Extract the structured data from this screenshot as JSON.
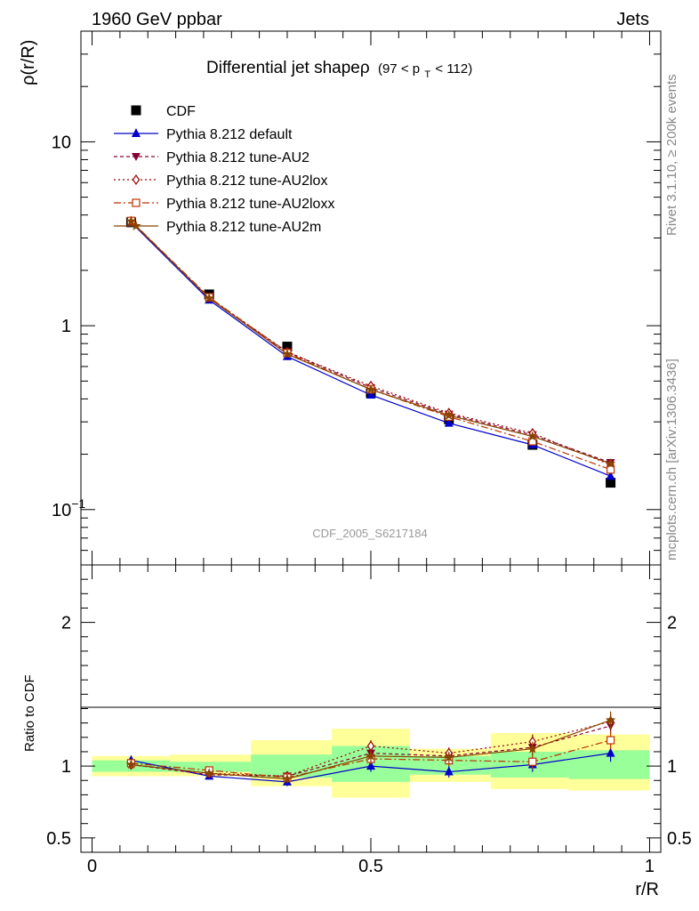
{
  "header": {
    "left": "1960 GeV ppbar",
    "right": "Jets"
  },
  "side_labels": {
    "rivet": "Rivet 3.1.10, ≥ 200k events",
    "source": "mcplots.cern.ch [arXiv:1306.3436]"
  },
  "watermark": "CDF_2005_S6217184",
  "colors": {
    "cdf": "#000000",
    "default": "#0000cc",
    "au2": "#880033",
    "au2lox": "#990000",
    "au2loxx": "#bb3300",
    "au2m": "#884400",
    "band_yellow": "#ffff99",
    "band_green": "#99ff99"
  },
  "chart_data": [
    {
      "id": "main",
      "type": "line",
      "title_main": "Differential jet shapeρ",
      "title_sub": "(97 < p",
      "title_sub_index": "T",
      "title_sub_tail": " < 112)",
      "ylabel": "ρ(r/R)",
      "yscale": "log",
      "ylim": [
        0.05,
        40
      ],
      "xlim": [
        -0.02,
        1.02
      ],
      "y_tick_labels": [
        {
          "value": 10,
          "label": "10"
        },
        {
          "value": 1,
          "label": "1"
        },
        {
          "value": 0.1,
          "label": "10",
          "exponent": "−1"
        }
      ],
      "x": [
        0.07,
        0.21,
        0.35,
        0.5,
        0.64,
        0.79,
        0.93
      ],
      "series": [
        {
          "key": "cdf",
          "name": "CDF",
          "marker": "square",
          "values": [
            3.65,
            1.48,
            0.77,
            0.43,
            0.31,
            0.225,
            0.14
          ]
        },
        {
          "key": "default",
          "name": "Pythia 8.212 default",
          "marker": "triangle-up",
          "values": [
            3.65,
            1.38,
            0.68,
            0.42,
            0.295,
            0.225,
            0.152
          ]
        },
        {
          "key": "au2",
          "name": "Pythia 8.212 tune-AU2",
          "marker": "triangle-down",
          "values": [
            3.68,
            1.41,
            0.72,
            0.46,
            0.33,
            0.255,
            0.18
          ]
        },
        {
          "key": "au2lox",
          "name": "Pythia 8.212 tune-AU2lox",
          "marker": "diamond",
          "values": [
            3.7,
            1.42,
            0.72,
            0.47,
            0.335,
            0.26,
            0.175
          ]
        },
        {
          "key": "au2loxx",
          "name": "Pythia 8.212 tune-AU2loxx",
          "marker": "square-open",
          "values": [
            3.72,
            1.43,
            0.71,
            0.45,
            0.32,
            0.235,
            0.165
          ]
        },
        {
          "key": "au2m",
          "name": "Pythia 8.212 tune-AU2m",
          "marker": "star",
          "values": [
            3.7,
            1.41,
            0.7,
            0.45,
            0.325,
            0.25,
            0.178
          ]
        }
      ]
    },
    {
      "id": "ratio",
      "type": "line",
      "ylabel": "Ratio to CDF",
      "xlabel": "r/R",
      "ylim": [
        0.4,
        2.4
      ],
      "xlim": [
        -0.02,
        1.02
      ],
      "y_ticks": [
        {
          "value": 2,
          "label": "2"
        },
        {
          "value": 1,
          "label": "1"
        },
        {
          "value": 0.5,
          "label": "0.5"
        }
      ],
      "x_ticks": [
        {
          "value": 0,
          "label": "0"
        },
        {
          "value": 0.5,
          "label": "0.5"
        },
        {
          "value": 1,
          "label": "1"
        }
      ],
      "bins": [
        {
          "lo": 0.0,
          "hi": 0.14,
          "yellow": [
            0.93,
            1.07
          ],
          "green": [
            0.96,
            1.04
          ]
        },
        {
          "lo": 0.14,
          "hi": 0.285,
          "yellow": [
            0.93,
            1.08
          ],
          "green": [
            0.96,
            1.03
          ]
        },
        {
          "lo": 0.285,
          "hi": 0.43,
          "yellow": [
            0.86,
            1.18
          ],
          "green": [
            0.92,
            1.08
          ]
        },
        {
          "lo": 0.43,
          "hi": 0.57,
          "yellow": [
            0.78,
            1.26
          ],
          "green": [
            0.89,
            1.14
          ]
        },
        {
          "lo": 0.57,
          "hi": 0.715,
          "yellow": [
            0.89,
            1.12
          ],
          "green": [
            0.94,
            1.07
          ]
        },
        {
          "lo": 0.715,
          "hi": 0.855,
          "yellow": [
            0.84,
            1.23
          ],
          "green": [
            0.92,
            1.1
          ]
        },
        {
          "lo": 0.855,
          "hi": 1.0,
          "yellow": [
            0.83,
            1.22
          ],
          "green": [
            0.91,
            1.11
          ]
        }
      ],
      "x": [
        0.07,
        0.21,
        0.35,
        0.5,
        0.64,
        0.79,
        0.93
      ],
      "series": [
        {
          "key": "default",
          "values": [
            1.04,
            0.93,
            0.89,
            1.0,
            0.96,
            1.01,
            1.09
          ],
          "errors": [
            0.02,
            0.02,
            0.03,
            0.04,
            0.04,
            0.05,
            0.06
          ]
        },
        {
          "key": "au2",
          "values": [
            1.01,
            0.94,
            0.93,
            1.09,
            1.07,
            1.13,
            1.28
          ],
          "errors": [
            0.02,
            0.02,
            0.03,
            0.04,
            0.04,
            0.05,
            0.06
          ]
        },
        {
          "key": "au2lox",
          "values": [
            1.01,
            0.95,
            0.93,
            1.14,
            1.09,
            1.17,
            1.31
          ],
          "errors": [
            0.02,
            0.02,
            0.03,
            0.04,
            0.04,
            0.05,
            0.06
          ]
        },
        {
          "key": "au2loxx",
          "values": [
            1.02,
            0.97,
            0.92,
            1.05,
            1.04,
            1.03,
            1.18
          ],
          "errors": [
            0.02,
            0.02,
            0.03,
            0.04,
            0.04,
            0.05,
            0.06
          ]
        },
        {
          "key": "au2m",
          "values": [
            1.01,
            0.95,
            0.91,
            1.07,
            1.06,
            1.12,
            1.32
          ],
          "errors": [
            0.02,
            0.02,
            0.03,
            0.04,
            0.04,
            0.05,
            0.06
          ]
        }
      ]
    }
  ]
}
